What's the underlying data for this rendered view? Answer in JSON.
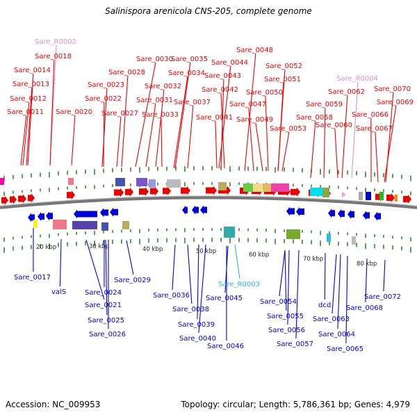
{
  "title": "Salinispora arenicola CNS-205, complete genome",
  "footer": {
    "accession": "Accession: NC_009953",
    "summary": "Topology: circular; Length: 5,786,361 bp; Genes: 4,979"
  },
  "scale_labels": [
    "20 kbp",
    "30 kbp",
    "40 kbp",
    "50 kbp",
    "60 kbp",
    "70 kbp",
    "80 kbp"
  ],
  "top_labels": [
    {
      "text": "Sare_R0002",
      "kind": "rna"
    },
    {
      "text": "Sare_0018",
      "kind": "gene"
    },
    {
      "text": "Sare_0014",
      "kind": "gene"
    },
    {
      "text": "Sare_0013",
      "kind": "gene"
    },
    {
      "text": "Sare_0012",
      "kind": "gene"
    },
    {
      "text": "Sare_0011",
      "kind": "gene"
    },
    {
      "text": "Sare_0020",
      "kind": "gene"
    },
    {
      "text": "Sare_0030",
      "kind": "gene"
    },
    {
      "text": "Sare_0028",
      "kind": "gene"
    },
    {
      "text": "Sare_0023",
      "kind": "gene"
    },
    {
      "text": "Sare_0022",
      "kind": "gene"
    },
    {
      "text": "Sare_0027",
      "kind": "gene"
    },
    {
      "text": "Sare_0031",
      "kind": "gene"
    },
    {
      "text": "Sare_0032",
      "kind": "gene"
    },
    {
      "text": "Sare_0033",
      "kind": "gene"
    },
    {
      "text": "Sare_0035",
      "kind": "gene"
    },
    {
      "text": "Sare_0034",
      "kind": "gene"
    },
    {
      "text": "Sare_0037",
      "kind": "gene"
    },
    {
      "text": "Sare_0044",
      "kind": "gene"
    },
    {
      "text": "Sare_0043",
      "kind": "gene"
    },
    {
      "text": "Sare_0042",
      "kind": "gene"
    },
    {
      "text": "Sare_0041",
      "kind": "gene"
    },
    {
      "text": "Sare_0048",
      "kind": "gene"
    },
    {
      "text": "Sare_0047",
      "kind": "gene"
    },
    {
      "text": "Sare_0049",
      "kind": "gene"
    },
    {
      "text": "Sare_0052",
      "kind": "gene"
    },
    {
      "text": "Sare_0051",
      "kind": "gene"
    },
    {
      "text": "Sare_0050",
      "kind": "gene"
    },
    {
      "text": "Sare_0053",
      "kind": "gene"
    },
    {
      "text": "Sare_R0004",
      "kind": "rna"
    },
    {
      "text": "Sare_0062",
      "kind": "gene"
    },
    {
      "text": "Sare_0059",
      "kind": "gene"
    },
    {
      "text": "Sare_0058",
      "kind": "gene"
    },
    {
      "text": "Sare_0060",
      "kind": "gene"
    },
    {
      "text": "Sare_0070",
      "kind": "gene"
    },
    {
      "text": "Sare_0069",
      "kind": "gene"
    },
    {
      "text": "Sare_0066",
      "kind": "gene"
    },
    {
      "text": "Sare_0067",
      "kind": "gene"
    }
  ],
  "bottom_labels": [
    {
      "text": "Sare_0017",
      "kind": "gene"
    },
    {
      "text": "valS",
      "kind": "gene"
    },
    {
      "text": "Sare_0021",
      "kind": "gene"
    },
    {
      "text": "Sare_0024",
      "kind": "gene"
    },
    {
      "text": "Sare_0025",
      "kind": "gene"
    },
    {
      "text": "Sare_0026",
      "kind": "gene"
    },
    {
      "text": "Sare_0029",
      "kind": "gene"
    },
    {
      "text": "Sare_0036",
      "kind": "gene"
    },
    {
      "text": "Sare_0038",
      "kind": "gene"
    },
    {
      "text": "Sare_0039",
      "kind": "gene"
    },
    {
      "text": "Sare_0040",
      "kind": "gene"
    },
    {
      "text": "Sare_R0003",
      "kind": "rna_cyan"
    },
    {
      "text": "Sare_0045",
      "kind": "gene"
    },
    {
      "text": "Sare_0046",
      "kind": "gene"
    },
    {
      "text": "Sare_0054",
      "kind": "gene"
    },
    {
      "text": "Sare_0055",
      "kind": "gene"
    },
    {
      "text": "Sare_0056",
      "kind": "gene"
    },
    {
      "text": "Sare_0057",
      "kind": "gene"
    },
    {
      "text": "dcd",
      "kind": "gene"
    },
    {
      "text": "Sare_0063",
      "kind": "gene"
    },
    {
      "text": "Sare_0064",
      "kind": "gene"
    },
    {
      "text": "Sare_0065",
      "kind": "gene"
    },
    {
      "text": "Sare_0068",
      "kind": "gene"
    },
    {
      "text": "Sare_0072",
      "kind": "gene"
    }
  ],
  "colors": {
    "forward": "#ee0000",
    "reverse": "#0000dd",
    "rna_label": "#e58fc8",
    "rna_cyan_label": "#33b0e0",
    "backbone": "#777777",
    "tick": "#2a8a2a"
  }
}
